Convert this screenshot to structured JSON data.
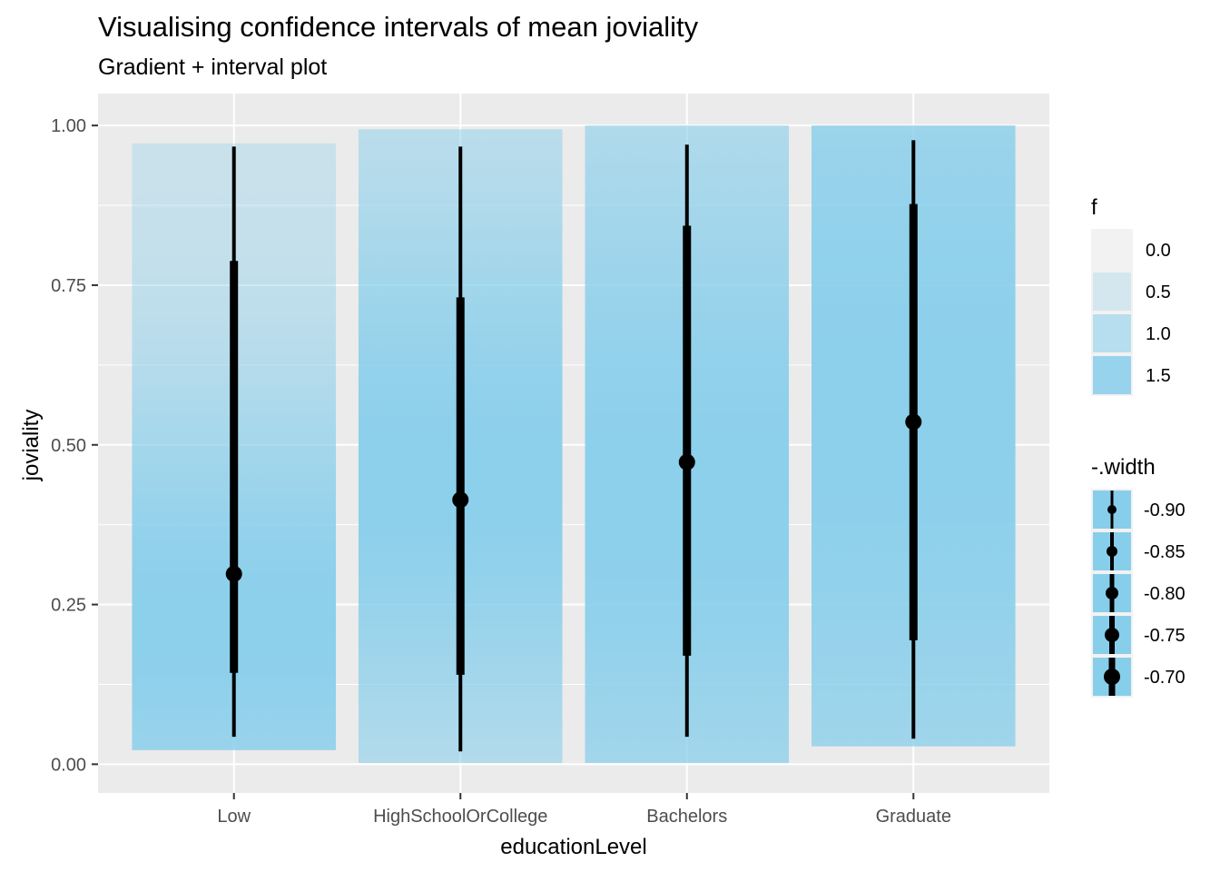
{
  "chart_data": {
    "type": "gradient-interval",
    "title": "Visualising confidence intervals of mean joviality",
    "subtitle": "Gradient + interval plot",
    "xlabel": "educationLevel",
    "ylabel": "joviality",
    "ylim": [
      -0.045,
      1.05
    ],
    "yticks": [
      "0.00",
      "0.25",
      "0.50",
      "0.75",
      "1.00"
    ],
    "ytick_values": [
      0,
      0.25,
      0.5,
      0.75,
      1.0
    ],
    "categories": [
      "Low",
      "HighSchoolOrCollege",
      "Bachelors",
      "Graduate"
    ],
    "grid": true,
    "legend_placement": "right",
    "fill_color": "#87CEEB",
    "series": [
      {
        "category": "Low",
        "mean": 0.298,
        "inner": [
          0.143,
          0.788
        ],
        "outer": [
          0.043,
          0.967
        ],
        "band": [
          0.022,
          0.972
        ],
        "peak": 0.22,
        "spread": 0.28
      },
      {
        "category": "HighSchoolOrCollege",
        "mean": 0.414,
        "inner": [
          0.14,
          0.731
        ],
        "outer": [
          0.02,
          0.967
        ],
        "band": [
          0.002,
          0.994
        ],
        "peak": 0.45,
        "spread": 0.33
      },
      {
        "category": "Bachelors",
        "mean": 0.473,
        "inner": [
          0.17,
          0.843
        ],
        "outer": [
          0.043,
          0.97
        ],
        "band": [
          0.002,
          1.0
        ],
        "peak": 0.42,
        "spread": 0.45
      },
      {
        "category": "Graduate",
        "mean": 0.536,
        "inner": [
          0.194,
          0.877
        ],
        "outer": [
          0.04,
          0.977
        ],
        "band": [
          0.028,
          1.0
        ],
        "peak": 0.55,
        "spread": 0.6
      }
    ],
    "legend_f": {
      "title": "f",
      "entries": [
        {
          "label": "0.0",
          "alpha": 0.0
        },
        {
          "label": "0.5",
          "alpha": 0.28
        },
        {
          "label": "1.0",
          "alpha": 0.55
        },
        {
          "label": "1.5",
          "alpha": 0.85
        }
      ]
    },
    "legend_width": {
      "title": "-.width",
      "entries": [
        {
          "label": "-0.90",
          "point_r": 5,
          "line_w": 3
        },
        {
          "label": "-0.85",
          "point_r": 6,
          "line_w": 4
        },
        {
          "label": "-0.80",
          "point_r": 7,
          "line_w": 5
        },
        {
          "label": "-0.75",
          "point_r": 8,
          "line_w": 6
        },
        {
          "label": "-0.70",
          "point_r": 9,
          "line_w": 7
        }
      ]
    }
  }
}
